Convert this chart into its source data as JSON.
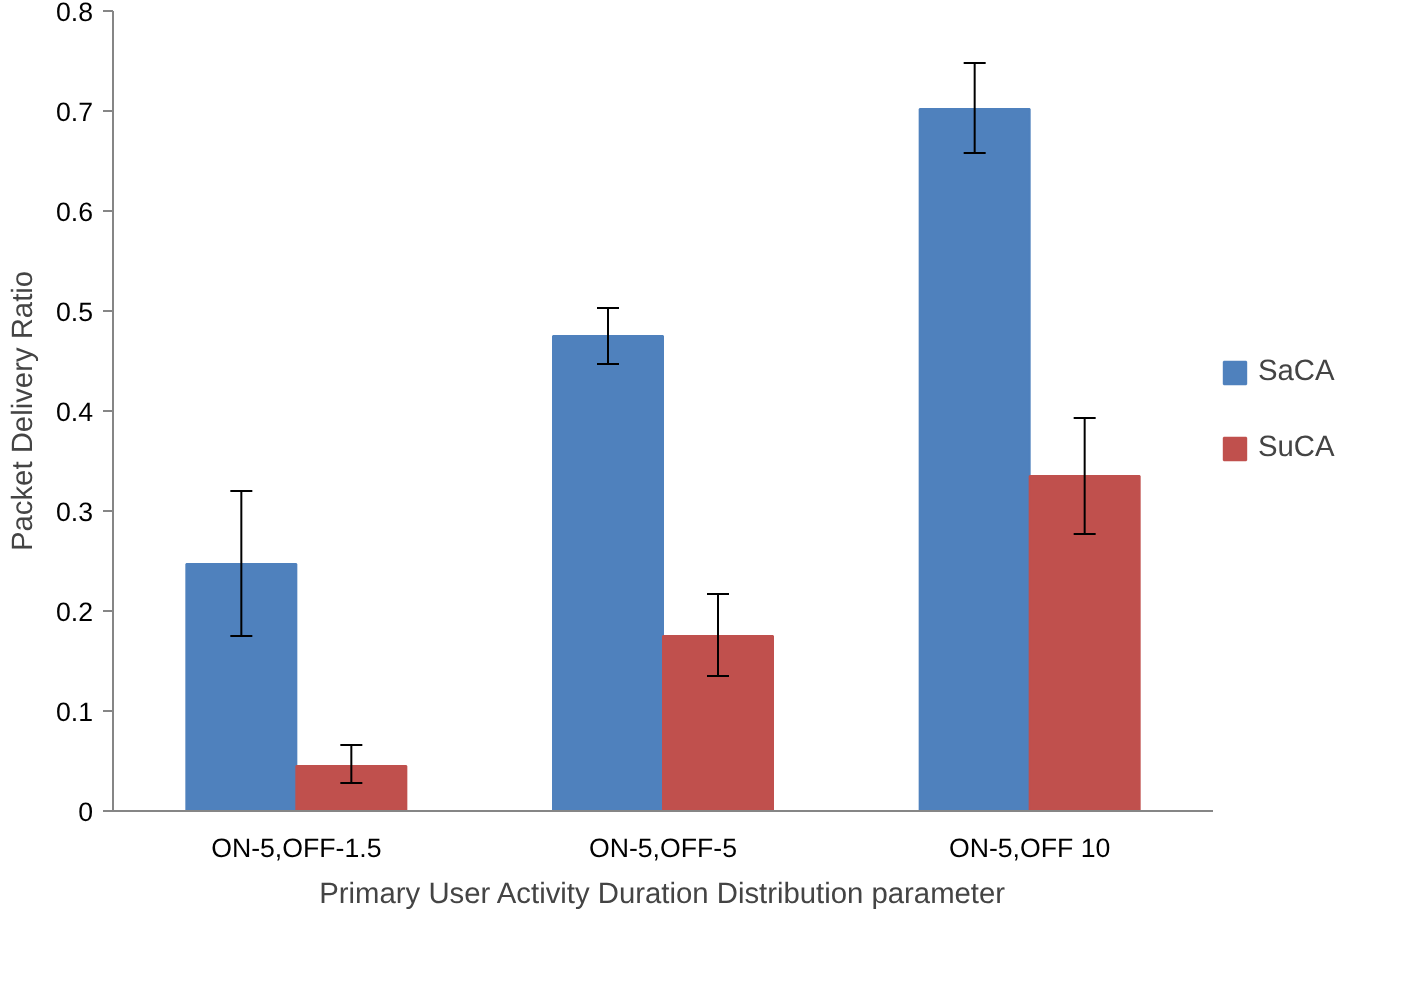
{
  "chart_data": {
    "type": "bar",
    "xlabel": "Primary User Activity Duration Distribution parameter",
    "ylabel": "Packet Delivery Ratio",
    "categories": [
      "ON-5,OFF-1.5",
      "ON-5,OFF-5",
      "ON-5,OFF 10"
    ],
    "series": [
      {
        "name": "SaCA",
        "color": "#4f81bd",
        "values": [
          0.247,
          0.475,
          0.702
        ],
        "errors": [
          [
            0.175,
            0.32
          ],
          [
            0.447,
            0.503
          ],
          [
            0.658,
            0.748
          ]
        ]
      },
      {
        "name": "SuCA",
        "color": "#c0504d",
        "values": [
          0.045,
          0.175,
          0.335
        ],
        "errors": [
          [
            0.028,
            0.066
          ],
          [
            0.135,
            0.217
          ],
          [
            0.277,
            0.393
          ]
        ]
      }
    ],
    "ylim": [
      0,
      0.8
    ],
    "yticks": [
      {
        "value": 0,
        "label": "0"
      },
      0.1,
      0.2,
      0.3,
      0.4,
      0.5,
      0.6,
      0.7,
      0.8
    ],
    "grid": false,
    "legend": "right"
  }
}
